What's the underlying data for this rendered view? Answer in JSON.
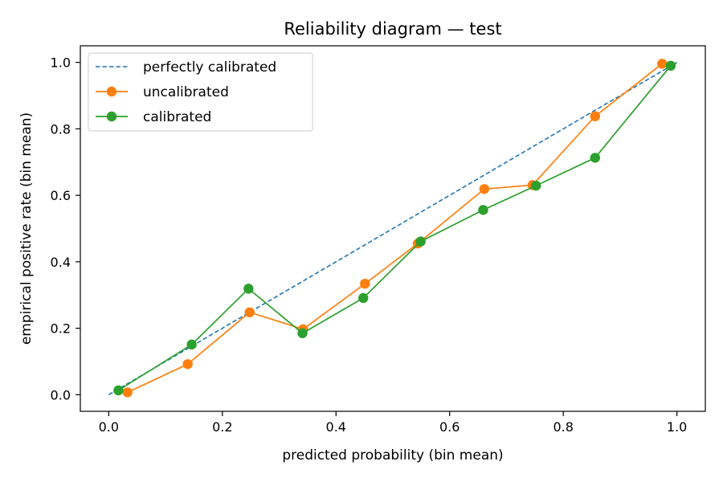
{
  "chart_data": {
    "type": "line",
    "title": "Reliability diagram — test",
    "xlabel": "predicted probability (bin mean)",
    "ylabel": "empirical positive rate (bin mean)",
    "xlim": [
      -0.05,
      1.05
    ],
    "ylim": [
      -0.05,
      1.05
    ],
    "xticks": [
      0.0,
      0.2,
      0.4,
      0.6,
      0.8,
      1.0
    ],
    "yticks": [
      0.0,
      0.2,
      0.4,
      0.6,
      0.8,
      1.0
    ],
    "xtick_labels": [
      "0.0",
      "0.2",
      "0.4",
      "0.6",
      "0.8",
      "1.0"
    ],
    "ytick_labels": [
      "0.0",
      "0.2",
      "0.4",
      "0.6",
      "0.8",
      "1.0"
    ],
    "grid": false,
    "legend_position": "top-left",
    "series": [
      {
        "name": "perfectly calibrated",
        "style": "dashed",
        "color": "#1f77b4",
        "x": [
          0.0,
          1.0
        ],
        "y": [
          0.0,
          1.0
        ]
      },
      {
        "name": "uncalibrated",
        "style": "solid-markers",
        "color": "#ff7f0e",
        "x": [
          0.033,
          0.139,
          0.248,
          0.342,
          0.451,
          0.544,
          0.661,
          0.746,
          0.856,
          0.974
        ],
        "y": [
          0.007,
          0.092,
          0.248,
          0.197,
          0.334,
          0.455,
          0.619,
          0.631,
          0.838,
          0.996
        ]
      },
      {
        "name": "calibrated",
        "style": "solid-markers",
        "color": "#2ca02c",
        "x": [
          0.017,
          0.146,
          0.246,
          0.341,
          0.448,
          0.549,
          0.659,
          0.752,
          0.856,
          0.989
        ],
        "y": [
          0.013,
          0.151,
          0.319,
          0.185,
          0.291,
          0.461,
          0.556,
          0.629,
          0.713,
          0.99
        ]
      }
    ]
  }
}
